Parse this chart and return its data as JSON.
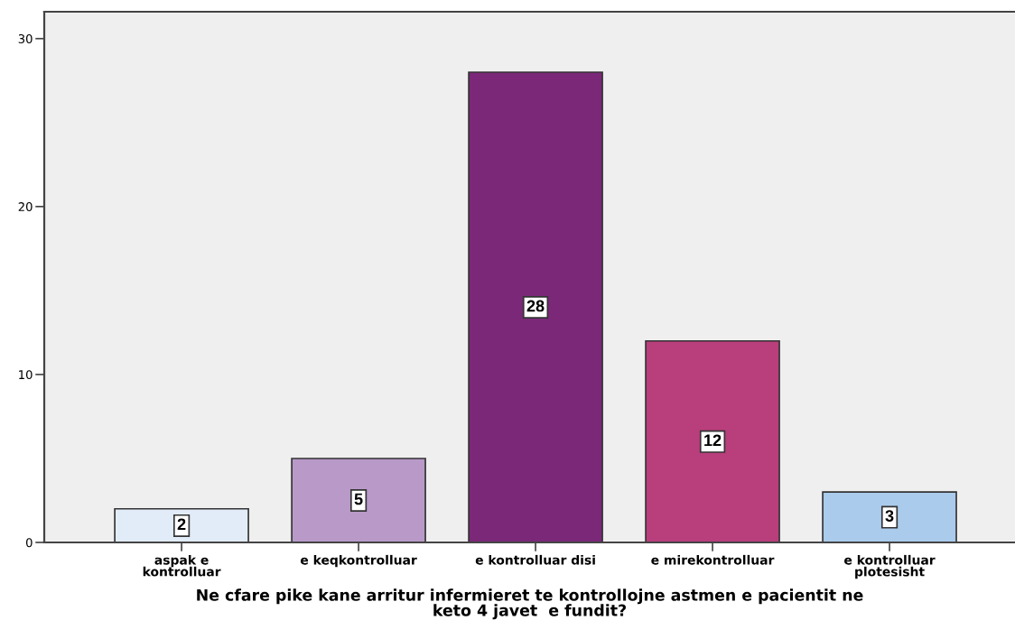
{
  "chart_data": {
    "type": "bar",
    "xlabel": "Ne cfare pike kane arritur infermieret te kontrollojne astmen e pacientit ne\nketo 4 javet  e fundit?",
    "categories": [
      "aspak e\nkontrolluar",
      "e keqkontrolluar",
      "e kontrolluar disi",
      "e mirekontrolluar",
      "e kontrolluar\nplotesisht"
    ],
    "values": [
      2,
      5,
      28,
      12,
      3
    ],
    "colors": [
      "#e1ecf8",
      "#b899c8",
      "#7b2879",
      "#b93e7c",
      "#aacbeb"
    ],
    "ylim": [
      0,
      31.6
    ],
    "yticks": [
      0,
      10,
      20,
      30
    ],
    "grid": false,
    "data_labels": true,
    "legend": false
  }
}
